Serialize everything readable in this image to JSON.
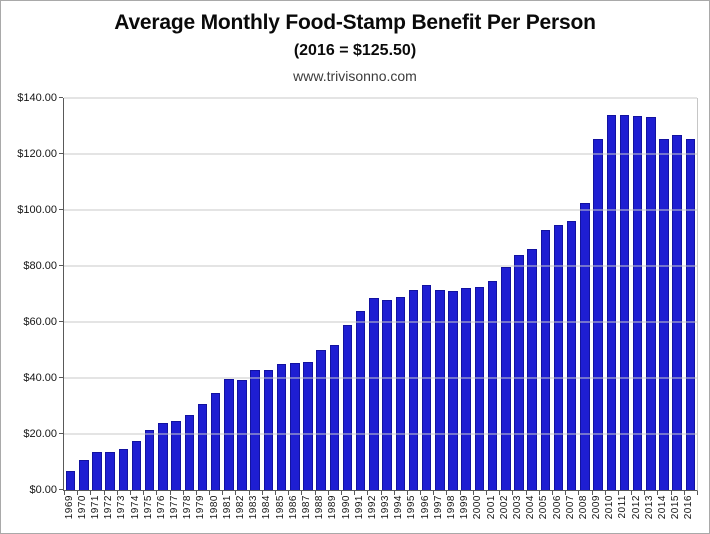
{
  "chart_data": {
    "type": "bar",
    "title": "Average Monthly Food-Stamp Benefit Per Person",
    "subtitle": "(2016 = $125.50)",
    "source": "www.trivisonno.com",
    "xlabel": "",
    "ylabel": "",
    "ylim": [
      0,
      140
    ],
    "y_tick_step": 20,
    "y_tick_labels": [
      "$0.00",
      "$20.00",
      "$40.00",
      "$60.00",
      "$80.00",
      "$100.00",
      "$120.00",
      "$140.00"
    ],
    "grid": "horizontal",
    "legend_position": "none",
    "categories": [
      "1969",
      "1970",
      "1971",
      "1972",
      "1973",
      "1974",
      "1975",
      "1976",
      "1977",
      "1978",
      "1979",
      "1980",
      "1981",
      "1982",
      "1983",
      "1984",
      "1985",
      "1986",
      "1987",
      "1988",
      "1989",
      "1990",
      "1991",
      "1992",
      "1993",
      "1994",
      "1995",
      "1996",
      "1997",
      "1998",
      "1999",
      "2000",
      "2001",
      "2002",
      "2003",
      "2004",
      "2005",
      "2006",
      "2007",
      "2008",
      "2009",
      "2010",
      "2011",
      "2012",
      "2013",
      "2014",
      "2015",
      "2016"
    ],
    "values": [
      6.63,
      10.55,
      13.55,
      13.48,
      14.6,
      17.61,
      21.4,
      23.93,
      24.71,
      26.77,
      30.59,
      34.47,
      39.49,
      39.17,
      42.98,
      42.74,
      44.99,
      45.49,
      45.78,
      49.83,
      51.85,
      58.78,
      63.87,
      68.57,
      67.95,
      69.0,
      71.27,
      73.21,
      71.27,
      71.12,
      72.27,
      72.62,
      74.81,
      79.67,
      83.94,
      86.16,
      92.89,
      94.75,
      96.18,
      102.51,
      125.31,
      133.79,
      133.85,
      133.41,
      133.07,
      125.35,
      126.81,
      125.5
    ],
    "colors": {
      "bar_fill": "#1e1ed2",
      "bar_border": "#1212a0",
      "gridline": "#c9c9c9",
      "axis": "#595959",
      "title_text": "#0a0a0a",
      "source_text": "#3c3c3c",
      "background": "#ffffff"
    }
  }
}
